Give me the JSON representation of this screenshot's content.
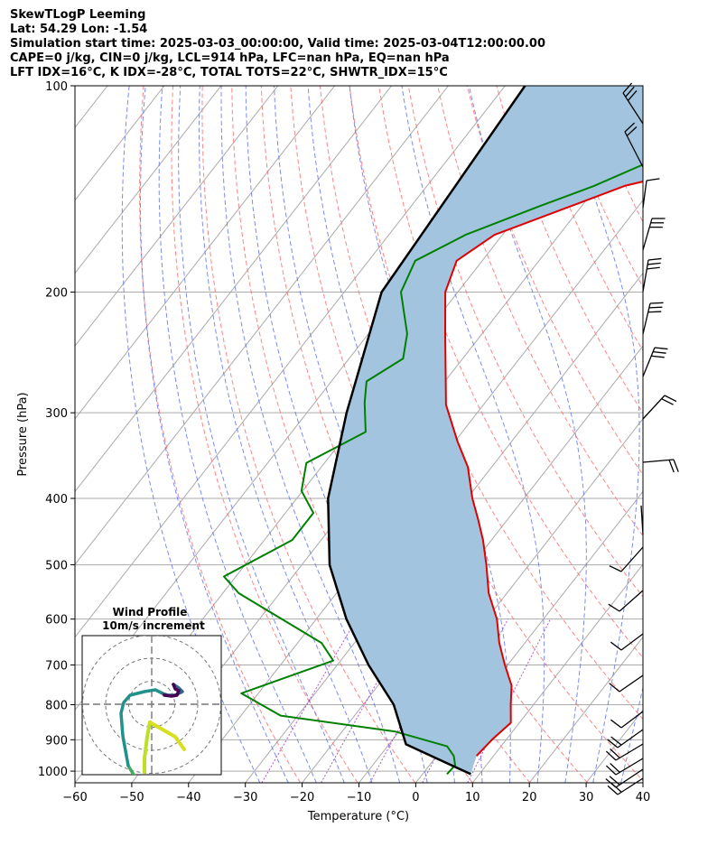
{
  "header": {
    "line1": "SkewTLogP Leeming",
    "line2": "Lat: 54.29   Lon: -1.54",
    "line3": "Simulation start time: 2025-03-03_00:00:00, Valid time: 2025-03-04T12:00:00.00",
    "line4": "CAPE=0 j/kg, CIN=0 j/kg, LCL=914 hPa, LFC=nan hPa, EQ=nan hPa",
    "line5": "LFT IDX=16°C, K IDX=-28°C, TOTAL TOTS=22°C, SHWTR_IDX=15°C"
  },
  "chart_data": [
    {
      "type": "line",
      "subtype": "skew-t log-p",
      "xlabel": "Temperature (°C)",
      "ylabel": "Pressure (hPa)",
      "xlim": [
        -60,
        40
      ],
      "ylim": [
        1040,
        100
      ],
      "y_scale": "log",
      "grid": true,
      "x_ticks": [
        "−60",
        "−50",
        "−40",
        "−30",
        "−20",
        "−10",
        "0",
        "10",
        "20",
        "30",
        "40"
      ],
      "y_ticks": [
        "100",
        "200",
        "300",
        "400",
        "500",
        "600",
        "700",
        "800",
        "900",
        "1000"
      ],
      "colors": {
        "temperature": "#e00000",
        "dewpoint": "#008000",
        "parcel": "#000000",
        "cape_fill": "#a2c4de",
        "dry_adiabats": "#ff6666",
        "moist_adiabats": "#5a6ef0",
        "mixing_ratio": "#a040c0",
        "isotherms": "#aaaaaa"
      },
      "series": [
        {
          "role": "temperature",
          "points": [
            [
              -12.6,
              100
            ],
            [
              -19,
              110
            ],
            [
              -27.2,
              122
            ],
            [
              -32,
              130
            ],
            [
              -45.2,
              140
            ],
            [
              -52,
              150
            ],
            [
              -61.4,
              165
            ],
            [
              -64.5,
              180
            ],
            [
              -62.2,
              200
            ],
            [
              -56.5,
              230
            ],
            [
              -51.1,
              262
            ],
            [
              -46.6,
              292
            ],
            [
              -39.6,
              330
            ],
            [
              -34.2,
              360
            ],
            [
              -29.1,
              400
            ],
            [
              -25.1,
              430
            ],
            [
              -21.5,
              460
            ],
            [
              -17.5,
              500
            ],
            [
              -13.2,
              550
            ],
            [
              -8.2,
              600
            ],
            [
              -4.5,
              650
            ],
            [
              -0.5,
              700
            ],
            [
              3.5,
              750
            ],
            [
              6,
              800
            ],
            [
              8.5,
              850
            ],
            [
              7.5,
              900
            ],
            [
              7,
              950
            ]
          ]
        },
        {
          "role": "dewpoint",
          "points": [
            [
              -25,
              100
            ],
            [
              -33,
              110
            ],
            [
              -39.6,
              120
            ],
            [
              -44.7,
              130
            ],
            [
              -50.6,
              140
            ],
            [
              -57.5,
              150
            ],
            [
              -66.5,
              165
            ],
            [
              -71.8,
              180
            ],
            [
              -70,
              200
            ],
            [
              -63.2,
              230
            ],
            [
              -60.5,
              250
            ],
            [
              -63.8,
              270
            ],
            [
              -61.2,
              290
            ],
            [
              -57,
              320
            ],
            [
              -63.2,
              355
            ],
            [
              -60.2,
              390
            ],
            [
              -55.1,
              420
            ],
            [
              -55.1,
              460
            ],
            [
              -62.1,
              520
            ],
            [
              -57.2,
              550
            ],
            [
              -35.8,
              650
            ],
            [
              -31.3,
              690
            ],
            [
              -43,
              770
            ],
            [
              -33,
              830
            ],
            [
              -10.8,
              875
            ],
            [
              0.5,
              920
            ],
            [
              3,
              950
            ],
            [
              4.5,
              980
            ],
            [
              4.3,
              1010
            ]
          ]
        },
        {
          "role": "parcel",
          "points": [
            [
              -76.5,
              100
            ],
            [
              -73.4,
              200
            ],
            [
              -63,
              300
            ],
            [
              -54.5,
              400
            ],
            [
              -45.1,
              500
            ],
            [
              -34.7,
              600
            ],
            [
              -24.5,
              700
            ],
            [
              -14.6,
              800
            ],
            [
              -7,
              914
            ],
            [
              8.5,
              1010
            ]
          ]
        }
      ],
      "hodograph": {
        "title_line1": "Wind Profile",
        "title_line2": "10m/s increment",
        "rings": [
          10,
          20,
          30
        ],
        "segment_colors": [
          "#41ab5d",
          "#21918c",
          "#31688e",
          "#440154",
          "#bddf26",
          "#d6e01c"
        ]
      }
    }
  ]
}
